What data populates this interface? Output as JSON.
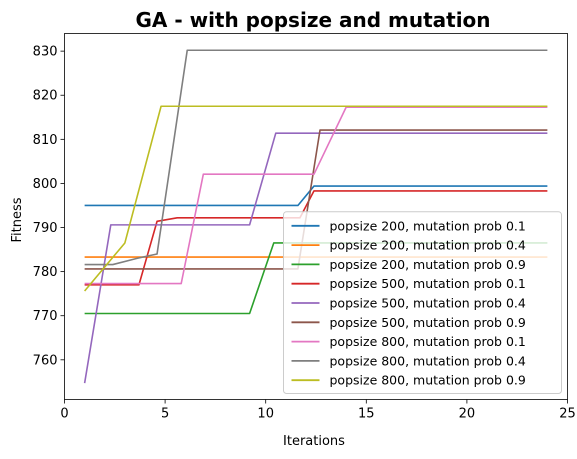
{
  "chart_data": {
    "type": "line",
    "title": "GA - with popsize and mutation",
    "xlabel": "Iterations",
    "ylabel": "Fitness",
    "xlim": [
      0,
      25
    ],
    "ylim": [
      751,
      834
    ],
    "xticks": [
      "0",
      "5",
      "10",
      "15",
      "20",
      "25"
    ],
    "yticks": [
      "760",
      "770",
      "780",
      "790",
      "800",
      "810",
      "820",
      "830"
    ],
    "grid": false,
    "legend_position": "lower-right",
    "series": [
      {
        "name": "popsize 200, mutation prob 0.1",
        "color": "#1f77b4",
        "x": [
          1,
          11.6,
          12.4,
          24
        ],
        "y": [
          795,
          795,
          799.4,
          799.4
        ]
      },
      {
        "name": "popsize 200, mutation prob 0.4",
        "color": "#ff7f0e",
        "x": [
          1,
          24
        ],
        "y": [
          783.3,
          783.3
        ]
      },
      {
        "name": "popsize 200, mutation prob 0.9",
        "color": "#2ca02c",
        "x": [
          1,
          9.2,
          10.4,
          24
        ],
        "y": [
          770.5,
          770.5,
          786.5,
          786.5
        ]
      },
      {
        "name": "popsize 500, mutation prob 0.1",
        "color": "#d62728",
        "x": [
          1,
          3.7,
          4.6,
          5.6,
          11.7,
          12.4,
          24
        ],
        "y": [
          777,
          777,
          791.4,
          792.2,
          792.2,
          798.3,
          798.3
        ]
      },
      {
        "name": "popsize 500, mutation prob 0.4",
        "color": "#9467bd",
        "x": [
          1,
          2.3,
          9.2,
          10.5,
          24
        ],
        "y": [
          754.7,
          790.6,
          790.6,
          811.4,
          811.4
        ]
      },
      {
        "name": "popsize 500, mutation prob 0.9",
        "color": "#8c564b",
        "x": [
          1,
          11.6,
          12.7,
          24
        ],
        "y": [
          780.6,
          780.6,
          812.1,
          812.1
        ]
      },
      {
        "name": "popsize 800, mutation prob 0.1",
        "color": "#e377c2",
        "x": [
          1,
          5.8,
          6.9,
          12.4,
          14,
          24
        ],
        "y": [
          777.3,
          777.3,
          802.1,
          802.1,
          817.3,
          817.3
        ]
      },
      {
        "name": "popsize 800, mutation prob 0.4",
        "color": "#7f7f7f",
        "x": [
          1,
          2.4,
          3.6,
          4.6,
          6.1,
          24
        ],
        "y": [
          781.6,
          781.6,
          783,
          784,
          830.2,
          830.2
        ]
      },
      {
        "name": "popsize 800, mutation prob 0.9",
        "color": "#bcbd22",
        "x": [
          1,
          3,
          4.8,
          24
        ],
        "y": [
          775.6,
          786.5,
          817.5,
          817.5
        ]
      }
    ]
  }
}
